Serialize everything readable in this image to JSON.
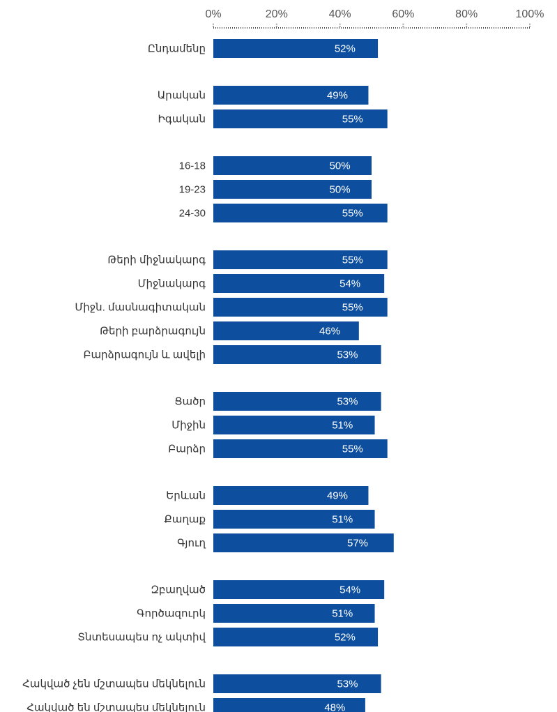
{
  "colors": {
    "bar": "#0d4f9e",
    "axis_dots": "#444444",
    "tick_text": "#555555",
    "label_text": "#333333",
    "data_text": "#ffffff"
  },
  "chart_data": {
    "type": "bar",
    "orientation": "horizontal",
    "xlim": [
      0,
      100
    ],
    "ticks": [
      0,
      20,
      40,
      60,
      80,
      100
    ],
    "tick_labels": [
      "0%",
      "20%",
      "40%",
      "60%",
      "80%",
      "100%"
    ],
    "axis_position": "top",
    "grid": false,
    "legend": "none",
    "groups": [
      {
        "bars": [
          {
            "category": "Ընդամենը",
            "value": 52,
            "label": "52%"
          }
        ]
      },
      {
        "bars": [
          {
            "category": "Արական",
            "value": 49,
            "label": "49%"
          },
          {
            "category": "Իգական",
            "value": 55,
            "label": "55%"
          }
        ]
      },
      {
        "bars": [
          {
            "category": "16-18",
            "value": 50,
            "label": "50%"
          },
          {
            "category": "19-23",
            "value": 50,
            "label": "50%"
          },
          {
            "category": "24-30",
            "value": 55,
            "label": "55%"
          }
        ]
      },
      {
        "bars": [
          {
            "category": "Թերի միջնակարգ",
            "value": 55,
            "label": "55%"
          },
          {
            "category": "Միջնակարգ",
            "value": 54,
            "label": "54%"
          },
          {
            "category": "Միջն. մասնագիտական",
            "value": 55,
            "label": "55%"
          },
          {
            "category": "Թերի բարձրագույն",
            "value": 46,
            "label": "46%"
          },
          {
            "category": "Բարձրագույն և ավելի",
            "value": 53,
            "label": "53%"
          }
        ]
      },
      {
        "bars": [
          {
            "category": "Ցածր",
            "value": 53,
            "label": "53%"
          },
          {
            "category": "Միջին",
            "value": 51,
            "label": "51%"
          },
          {
            "category": "Բարձր",
            "value": 55,
            "label": "55%"
          }
        ]
      },
      {
        "bars": [
          {
            "category": "Երևան",
            "value": 49,
            "label": "49%"
          },
          {
            "category": "Քաղաք",
            "value": 51,
            "label": "51%"
          },
          {
            "category": "Գյուղ",
            "value": 57,
            "label": "57%"
          }
        ]
      },
      {
        "bars": [
          {
            "category": "Զբաղված",
            "value": 54,
            "label": "54%"
          },
          {
            "category": "Գործազուրկ",
            "value": 51,
            "label": "51%"
          },
          {
            "category": "Տնտեսապես ոչ ակտիվ",
            "value": 52,
            "label": "52%"
          }
        ]
      },
      {
        "bars": [
          {
            "category": "Հակված չեն մշտապես մեկնելուն",
            "value": 53,
            "label": "53%"
          },
          {
            "category": "Հակված են մշտապես մեկնելուն",
            "value": 48,
            "label": "48%"
          }
        ]
      }
    ]
  }
}
